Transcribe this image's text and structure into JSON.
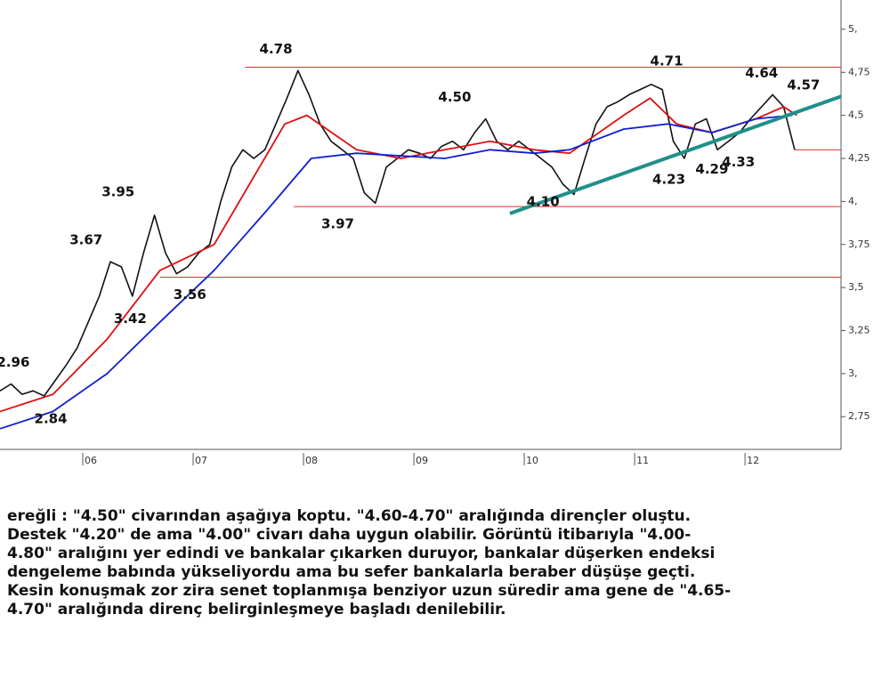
{
  "chart_data": {
    "type": "line",
    "xlim": [
      5.25,
      12.87
    ],
    "ylim": [
      2.56,
      5.17
    ],
    "xticks": [
      {
        "value": 6,
        "label": "06"
      },
      {
        "value": 7,
        "label": "07"
      },
      {
        "value": 8,
        "label": "08"
      },
      {
        "value": 9,
        "label": "09"
      },
      {
        "value": 10,
        "label": "10"
      },
      {
        "value": 11,
        "label": "11"
      },
      {
        "value": 12,
        "label": "12"
      }
    ],
    "yticks": [
      {
        "value": 5,
        "label": "5,"
      },
      {
        "value": 4.75,
        "label": "4,75"
      },
      {
        "value": 4.5,
        "label": "4,5"
      },
      {
        "value": 4.25,
        "label": "4,25"
      },
      {
        "value": 4,
        "label": "4,"
      },
      {
        "value": 3.75,
        "label": "3,75"
      },
      {
        "value": 3.5,
        "label": "3,5"
      },
      {
        "value": 3.25,
        "label": "3,25"
      },
      {
        "value": 3,
        "label": "3,"
      },
      {
        "value": 2.75,
        "label": "2,75"
      }
    ],
    "series": [
      {
        "color": "#111111",
        "width": 1.6,
        "x": [
          5.25,
          5.35,
          5.45,
          5.55,
          5.65,
          5.75,
          5.85,
          5.95,
          6.05,
          6.15,
          6.25,
          6.35,
          6.45,
          6.55,
          6.65,
          6.75,
          6.85,
          6.95,
          7.05,
          7.15,
          7.25,
          7.35,
          7.45,
          7.55,
          7.65,
          7.75,
          7.85,
          7.95,
          8.05,
          8.15,
          8.25,
          8.35,
          8.45,
          8.55,
          8.65,
          8.75,
          8.85,
          8.95,
          9.05,
          9.15,
          9.25,
          9.35,
          9.45,
          9.55,
          9.65,
          9.75,
          9.85,
          9.95,
          10.05,
          10.15,
          10.25,
          10.35,
          10.45,
          10.55,
          10.65,
          10.75,
          10.85,
          10.95,
          11.05,
          11.15,
          11.25,
          11.35,
          11.45,
          11.55,
          11.65,
          11.75,
          11.85,
          11.95,
          12.05,
          12.15,
          12.25,
          12.35,
          12.45
        ],
        "values": [
          2.9,
          2.94,
          2.88,
          2.9,
          2.87,
          2.96,
          3.05,
          3.15,
          3.3,
          3.45,
          3.65,
          3.62,
          3.45,
          3.7,
          3.92,
          3.7,
          3.58,
          3.62,
          3.7,
          3.75,
          4.0,
          4.2,
          4.3,
          4.25,
          4.3,
          4.45,
          4.6,
          4.76,
          4.62,
          4.45,
          4.35,
          4.3,
          4.25,
          4.05,
          3.99,
          4.2,
          4.25,
          4.3,
          4.28,
          4.25,
          4.32,
          4.35,
          4.3,
          4.4,
          4.48,
          4.35,
          4.3,
          4.35,
          4.3,
          4.25,
          4.2,
          4.1,
          4.04,
          4.25,
          4.45,
          4.55,
          4.58,
          4.62,
          4.65,
          4.68,
          4.65,
          4.35,
          4.25,
          4.45,
          4.48,
          4.3,
          4.35,
          4.4,
          4.48,
          4.55,
          4.62,
          4.55,
          4.3
        ]
      },
      {
        "color": "#e01010",
        "width": 1.8,
        "x": [
          5.25,
          5.73,
          6.22,
          6.7,
          7.19,
          7.51,
          7.83,
          8.03,
          8.48,
          8.88,
          9.28,
          9.69,
          10.09,
          10.41,
          10.9,
          11.14,
          11.38,
          11.7,
          12.1,
          12.35,
          12.47
        ],
        "values": [
          2.78,
          2.88,
          3.2,
          3.6,
          3.75,
          4.1,
          4.45,
          4.5,
          4.3,
          4.25,
          4.3,
          4.35,
          4.3,
          4.28,
          4.5,
          4.6,
          4.45,
          4.4,
          4.48,
          4.55,
          4.5
        ]
      },
      {
        "color": "#1020d0",
        "width": 1.8,
        "x": [
          5.25,
          5.73,
          6.22,
          6.7,
          7.19,
          7.67,
          8.07,
          8.48,
          9.28,
          9.69,
          10.09,
          10.41,
          10.9,
          11.3,
          11.7,
          12.1,
          12.43
        ],
        "values": [
          2.68,
          2.78,
          3.0,
          3.3,
          3.6,
          3.95,
          4.25,
          4.28,
          4.25,
          4.3,
          4.28,
          4.3,
          4.42,
          4.45,
          4.4,
          4.48,
          4.5
        ]
      }
    ],
    "hlines": [
      {
        "y": 4.78,
        "x": [
          7.47,
          12.87
        ],
        "color": "#e03030"
      },
      {
        "y": 4.3,
        "x": [
          12.45,
          12.87
        ],
        "color": "#e03030"
      },
      {
        "y": 3.97,
        "x": [
          7.91,
          12.87
        ],
        "color": "#e03030"
      },
      {
        "y": 3.56,
        "x": [
          6.7,
          12.87
        ],
        "color": "#e03030"
      }
    ],
    "trendline": {
      "x": [
        9.87,
        12.87
      ],
      "y": [
        3.93,
        4.61
      ],
      "color": "#1f8f8a"
    },
    "annotations": [
      {
        "label": "4.78",
        "x": 7.75,
        "y": 4.78,
        "position": "above"
      },
      {
        "label": "3.95",
        "x": 6.32,
        "y": 3.95,
        "position": "above"
      },
      {
        "label": "3.67",
        "x": 6.03,
        "y": 3.67,
        "position": "above"
      },
      {
        "label": "3.42",
        "x": 6.43,
        "y": 3.42,
        "position": "below"
      },
      {
        "label": "3.56",
        "x": 6.97,
        "y": 3.56,
        "position": "below"
      },
      {
        "label": "2.96",
        "x": 5.37,
        "y": 2.96,
        "position": "above"
      },
      {
        "label": "2.84",
        "x": 5.71,
        "y": 2.84,
        "position": "below"
      },
      {
        "label": "3.97",
        "x": 8.31,
        "y": 3.97,
        "position": "below"
      },
      {
        "label": "4.50",
        "x": 9.37,
        "y": 4.5,
        "position": "above"
      },
      {
        "label": "4.10",
        "x": 10.17,
        "y": 4.1,
        "position": "below"
      },
      {
        "label": "4.71",
        "x": 11.29,
        "y": 4.71,
        "position": "above"
      },
      {
        "label": "4.23",
        "x": 11.31,
        "y": 4.23,
        "position": "below"
      },
      {
        "label": "4.29",
        "x": 11.7,
        "y": 4.29,
        "position": "below"
      },
      {
        "label": "4.33",
        "x": 11.94,
        "y": 4.33,
        "position": "below"
      },
      {
        "label": "4.64",
        "x": 12.15,
        "y": 4.64,
        "position": "above"
      },
      {
        "label": "4.57",
        "x": 12.53,
        "y": 4.57,
        "position": "above"
      }
    ]
  },
  "notes": {
    "lines": [
      "ereğli : \"4.50\" civarından aşağıya koptu. \"4.60-4.70\" aralığında dirençler oluştu.",
      "Destek \"4.20\" de ama \"4.00\" civarı daha uygun olabilir. Görüntü itibarıyla \"4.00-",
      "4.80\" aralığını yer edindi ve bankalar çıkarken duruyor, bankalar düşerken endeksi",
      "dengeleme babında yükseliyordu ama bu sefer bankalarla beraber düşüşe geçti.",
      "Kesin konuşmak zor zira senet toplanmışa benziyor uzun süredir ama gene de \"4.65-",
      "4.70\" aralığında direnç belirginleşmeye başladı denilebilir."
    ]
  }
}
